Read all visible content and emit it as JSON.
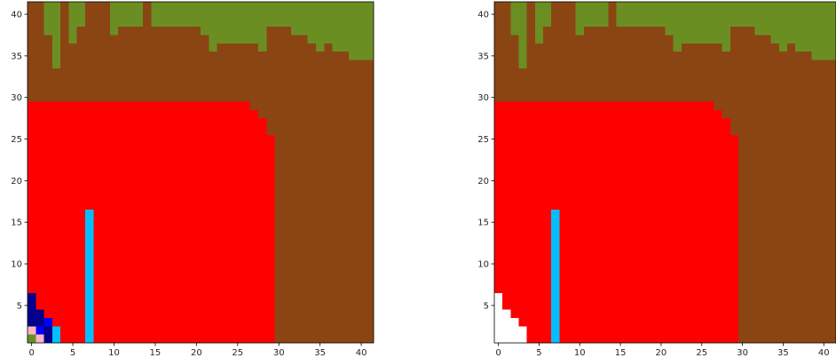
{
  "colors": {
    "olive": "#6B8E23",
    "brown": "#8B4513",
    "red": "#FF0000",
    "cyan": "#00BFFF",
    "navy": "#00008B",
    "pink": "#FFB6C1",
    "blue": "#0000FF",
    "white": "#FFFFFF"
  },
  "chart_data": [
    {
      "type": "heatmap",
      "xlim": [
        -0.5,
        41.5
      ],
      "ylim": [
        0.5,
        41.5
      ],
      "x_ticks": [
        0,
        5,
        10,
        15,
        20,
        25,
        30,
        35,
        40
      ],
      "y_ticks": [
        5,
        10,
        15,
        20,
        25,
        30,
        35,
        40
      ],
      "background": "brown",
      "regions": [
        {
          "color": "olive",
          "rule": "top_profile",
          "profile": [
            {
              "x": [
                1,
                1
              ],
              "above": 41
            },
            {
              "x": [
                2,
                2
              ],
              "above": 37
            },
            {
              "x": [
                3,
                3
              ],
              "above": 33
            },
            {
              "x": [
                4,
                4
              ],
              "above": 41
            },
            {
              "x": [
                5,
                5
              ],
              "above": 36
            },
            {
              "x": [
                6,
                6
              ],
              "above": 38
            },
            {
              "x": [
                7,
                9
              ],
              "above": 41
            },
            {
              "x": [
                10,
                10
              ],
              "above": 37
            },
            {
              "x": [
                11,
                13
              ],
              "above": 38
            },
            {
              "x": [
                14,
                14
              ],
              "above": 41
            },
            {
              "x": [
                15,
                20
              ],
              "above": 38
            },
            {
              "x": [
                21,
                21
              ],
              "above": 37
            },
            {
              "x": [
                22,
                22
              ],
              "above": 35
            },
            {
              "x": [
                23,
                23
              ],
              "above": 36
            },
            {
              "x": [
                24,
                27
              ],
              "above": 36
            },
            {
              "x": [
                28,
                28
              ],
              "above": 35
            },
            {
              "x": [
                29,
                31
              ],
              "above": 38
            },
            {
              "x": [
                32,
                33
              ],
              "above": 37
            },
            {
              "x": [
                34,
                34
              ],
              "above": 36
            },
            {
              "x": [
                35,
                35
              ],
              "above": 35
            },
            {
              "x": [
                36,
                36
              ],
              "above": 36
            },
            {
              "x": [
                37,
                38
              ],
              "above": 35
            },
            {
              "x": [
                39,
                41
              ],
              "above": 34
            }
          ]
        },
        {
          "color": "red",
          "rule": "column_ranges",
          "columns": [
            {
              "x": [
                0,
                26
              ],
              "y": [
                1,
                29
              ]
            },
            {
              "x": [
                27,
                27
              ],
              "y": [
                1,
                28
              ]
            },
            {
              "x": [
                28,
                28
              ],
              "y": [
                1,
                27
              ]
            },
            {
              "x": [
                29,
                29
              ],
              "y": [
                1,
                25
              ]
            }
          ]
        },
        {
          "color": "cyan",
          "rule": "rect",
          "x": [
            7,
            7
          ],
          "y": [
            1,
            16
          ]
        },
        {
          "color": "navy",
          "rule": "cells",
          "cells": [
            [
              0,
              3
            ],
            [
              0,
              4
            ],
            [
              0,
              5
            ],
            [
              0,
              6
            ],
            [
              1,
              3
            ],
            [
              1,
              4
            ],
            [
              2,
              1
            ],
            [
              2,
              2
            ],
            [
              2,
              3
            ]
          ]
        },
        {
          "color": "blue",
          "rule": "cells",
          "cells": [
            [
              1,
              2
            ],
            [
              2,
              3
            ]
          ]
        },
        {
          "color": "pink",
          "rule": "cells",
          "cells": [
            [
              0,
              2
            ],
            [
              1,
              1
            ]
          ]
        },
        {
          "color": "olive",
          "rule": "cells",
          "cells": [
            [
              0,
              1
            ]
          ]
        },
        {
          "color": "cyan",
          "rule": "cells",
          "cells": [
            [
              3,
              1
            ],
            [
              3,
              2
            ]
          ]
        }
      ]
    },
    {
      "type": "heatmap",
      "xlim": [
        -0.5,
        41.5
      ],
      "ylim": [
        0.5,
        41.5
      ],
      "x_ticks": [
        0,
        5,
        10,
        15,
        20,
        25,
        30,
        35,
        40
      ],
      "y_ticks": [
        5,
        10,
        15,
        20,
        25,
        30,
        35,
        40
      ],
      "background": "brown",
      "regions": [
        {
          "color": "olive",
          "rule": "top_profile",
          "profile": [
            {
              "x": [
                1,
                1
              ],
              "above": 41
            },
            {
              "x": [
                2,
                2
              ],
              "above": 37
            },
            {
              "x": [
                3,
                3
              ],
              "above": 33
            },
            {
              "x": [
                4,
                4
              ],
              "above": 41
            },
            {
              "x": [
                5,
                5
              ],
              "above": 36
            },
            {
              "x": [
                6,
                6
              ],
              "above": 38
            },
            {
              "x": [
                7,
                9
              ],
              "above": 41
            },
            {
              "x": [
                10,
                10
              ],
              "above": 37
            },
            {
              "x": [
                11,
                13
              ],
              "above": 38
            },
            {
              "x": [
                14,
                14
              ],
              "above": 41
            },
            {
              "x": [
                15,
                20
              ],
              "above": 38
            },
            {
              "x": [
                21,
                21
              ],
              "above": 37
            },
            {
              "x": [
                22,
                22
              ],
              "above": 35
            },
            {
              "x": [
                23,
                23
              ],
              "above": 36
            },
            {
              "x": [
                24,
                27
              ],
              "above": 36
            },
            {
              "x": [
                28,
                28
              ],
              "above": 35
            },
            {
              "x": [
                29,
                31
              ],
              "above": 38
            },
            {
              "x": [
                32,
                33
              ],
              "above": 37
            },
            {
              "x": [
                34,
                34
              ],
              "above": 36
            },
            {
              "x": [
                35,
                35
              ],
              "above": 35
            },
            {
              "x": [
                36,
                36
              ],
              "above": 36
            },
            {
              "x": [
                37,
                38
              ],
              "above": 35
            },
            {
              "x": [
                39,
                41
              ],
              "above": 34
            }
          ]
        },
        {
          "color": "red",
          "rule": "column_ranges",
          "columns": [
            {
              "x": [
                0,
                26
              ],
              "y": [
                1,
                29
              ]
            },
            {
              "x": [
                27,
                27
              ],
              "y": [
                1,
                28
              ]
            },
            {
              "x": [
                28,
                28
              ],
              "y": [
                1,
                27
              ]
            },
            {
              "x": [
                29,
                29
              ],
              "y": [
                1,
                25
              ]
            }
          ]
        },
        {
          "color": "cyan",
          "rule": "rect",
          "x": [
            7,
            7
          ],
          "y": [
            1,
            16
          ]
        },
        {
          "color": "white",
          "rule": "column_ranges",
          "columns": [
            {
              "x": [
                0,
                0
              ],
              "y": [
                1,
                6
              ]
            },
            {
              "x": [
                1,
                1
              ],
              "y": [
                1,
                4
              ]
            },
            {
              "x": [
                2,
                2
              ],
              "y": [
                1,
                3
              ]
            },
            {
              "x": [
                3,
                3
              ],
              "y": [
                1,
                2
              ]
            }
          ]
        }
      ]
    }
  ]
}
